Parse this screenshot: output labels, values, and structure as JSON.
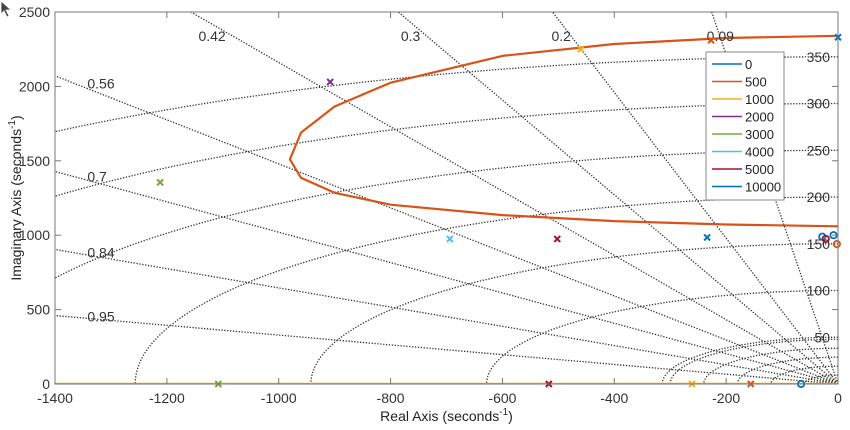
{
  "chart_data": {
    "type": "line",
    "title": "",
    "xlabel": "Real Axis (seconds",
    "ylabel": "Imaginary Axis (seconds",
    "label_exponent": "-1",
    "xlim": [
      -1400,
      0
    ],
    "ylim": [
      0,
      2500
    ],
    "xticks": [
      -1400,
      -1200,
      -1000,
      -800,
      -600,
      -400,
      -200,
      0
    ],
    "yticks": [
      0,
      500,
      1000,
      1500,
      2000,
      2500
    ],
    "grid": "s-plane damping/frequency grid (dotted)",
    "damping_labels": [
      "0.09",
      "0.2",
      "0.3",
      "0.42",
      "0.56",
      "0.7",
      "0.84",
      "0.95"
    ],
    "damping_values": [
      0.09,
      0.2,
      0.3,
      0.42,
      0.56,
      0.7,
      0.84,
      0.95
    ],
    "frequency_labels": [
      "50",
      "100",
      "150",
      "200",
      "250",
      "300",
      "350"
    ],
    "frequency_values": [
      50,
      100,
      150,
      200,
      250,
      300,
      350
    ],
    "legend": {
      "placement": "top-right",
      "entries": [
        {
          "label": "0",
          "color": "#0072BD"
        },
        {
          "label": "500",
          "color": "#D95319"
        },
        {
          "label": "1000",
          "color": "#EDB120"
        },
        {
          "label": "2000",
          "color": "#7E2F8E"
        },
        {
          "label": "3000",
          "color": "#77AC30"
        },
        {
          "label": "4000",
          "color": "#4DBEEE"
        },
        {
          "label": "5000",
          "color": "#A2142F"
        },
        {
          "label": "10000",
          "color": "#0072BD"
        }
      ]
    },
    "series": [
      {
        "name": "500",
        "color": "#D95319",
        "kind": "locus",
        "x": [
          0,
          -200,
          -400,
          -600,
          -800,
          -900,
          -960,
          -980,
          -960,
          -900,
          -800,
          -600,
          -400,
          -200,
          0
        ],
        "y": [
          2340,
          2325,
          2285,
          2205,
          2025,
          1865,
          1690,
          1510,
          1385,
          1285,
          1205,
          1135,
          1095,
          1072,
          1060
        ]
      },
      {
        "name": "1000",
        "color": "#EDB120",
        "kind": "locus",
        "x": [
          -1400,
          0
        ],
        "y": [
          0,
          0
        ]
      }
    ],
    "poles": [
      {
        "x": 0,
        "y": 2330,
        "color": "#0072BD"
      },
      {
        "x": -460,
        "y": 2250,
        "color": "#EDB120"
      },
      {
        "x": -227,
        "y": 2310,
        "color": "#D95319"
      },
      {
        "x": -908,
        "y": 2030,
        "color": "#7E2F8E"
      },
      {
        "x": -1212,
        "y": 1355,
        "color": "#77AC30"
      },
      {
        "x": -694,
        "y": 975,
        "color": "#4DBEEE"
      },
      {
        "x": -502,
        "y": 975,
        "color": "#A2142F"
      },
      {
        "x": -234,
        "y": 985,
        "color": "#0072BD"
      },
      {
        "x": -1108,
        "y": 0,
        "color": "#77AC30"
      },
      {
        "x": -517,
        "y": 0,
        "color": "#A2142F"
      },
      {
        "x": -261,
        "y": 0,
        "color": "#EDB120"
      },
      {
        "x": -156,
        "y": 0,
        "color": "#D95319"
      }
    ],
    "zeros": [
      {
        "x": -66,
        "y": 0,
        "color": "#0072BD"
      },
      {
        "x": -28,
        "y": 990,
        "color": "#0072BD"
      },
      {
        "x": -22,
        "y": 975,
        "color": "#A2142F"
      },
      {
        "x": -8,
        "y": 1000,
        "color": "#0072BD"
      },
      {
        "x": -2,
        "y": 940,
        "color": "#D95319"
      }
    ]
  }
}
